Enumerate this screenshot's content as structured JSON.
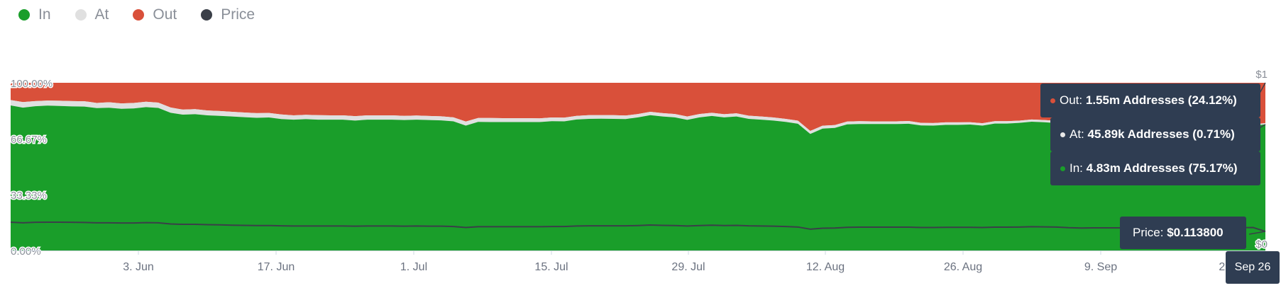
{
  "legend": [
    {
      "name": "In",
      "color": "#1a9e2a",
      "icon": "green-dot"
    },
    {
      "name": "At",
      "color": "#e0e0e0",
      "icon": "light-gray-dot"
    },
    {
      "name": "Out",
      "color": "#d9503a",
      "icon": "red-dot"
    },
    {
      "name": "Price",
      "color": "#3a3f48",
      "icon": "dark-gray-dot"
    }
  ],
  "chart_data": {
    "type": "area",
    "stacked": "percent",
    "y_ticks": [
      "100.00%",
      "66.67%",
      "33.33%",
      "0.00%"
    ],
    "y_range": [
      0,
      100
    ],
    "x_ticks": [
      "3. Jun",
      "17. Jun",
      "1. Jul",
      "15. Jul",
      "29. Jul",
      "12. Aug",
      "26. Aug",
      "9. Sep",
      "23. Sep"
    ],
    "right_axis_ticks": [
      "$1",
      "$0"
    ],
    "price_range": [
      0,
      1
    ],
    "x_start": "2024-05-23",
    "x_end": "2024-09-26",
    "series": [
      {
        "name": "In",
        "color": "#1a9e2a",
        "values": [
          86.5,
          85.2,
          86.0,
          86.4,
          86.2,
          85.9,
          85.8,
          84.9,
          85.1,
          84.5,
          84.7,
          85.5,
          85.0,
          82.1,
          81.0,
          81.3,
          80.6,
          80.3,
          79.9,
          79.5,
          79.1,
          79.3,
          78.4,
          78.0,
          78.3,
          78.0,
          78.0,
          78.0,
          77.5,
          78.0,
          78.0,
          78.0,
          77.8,
          78.0,
          77.8,
          77.6,
          77.0,
          74.5,
          76.7,
          76.6,
          76.6,
          76.6,
          76.6,
          76.6,
          77.1,
          77.0,
          78.1,
          78.5,
          78.6,
          78.5,
          78.4,
          79.4,
          80.7,
          79.9,
          79.4,
          77.9,
          79.4,
          80.2,
          79.4,
          79.9,
          78.5,
          78.0,
          77.5,
          76.7,
          75.6,
          69.5,
          72.7,
          73.1,
          75.2,
          75.4,
          75.4,
          75.4,
          75.4,
          75.6,
          74.6,
          74.5,
          74.9,
          74.9,
          75.1,
          74.5,
          75.7,
          75.7,
          76.1,
          76.8,
          76.5,
          76.0,
          74.0,
          73.3,
          73.5,
          73.5,
          73.5,
          73.5,
          73.5,
          72.0,
          70.0,
          73.8,
          74.0,
          74.0,
          73.9,
          74.0,
          74.0,
          74.5,
          75.17
        ]
      },
      {
        "name": "At",
        "color": "#e0e0e0",
        "values": [
          3.2,
          3.3,
          3.1,
          3.0,
          3.1,
          3.2,
          3.2,
          3.1,
          3.3,
          3.2,
          3.3,
          3.2,
          3.2,
          3.2,
          3.0,
          3.0,
          2.9,
          2.9,
          2.8,
          2.8,
          2.8,
          2.7,
          2.7,
          2.6,
          2.6,
          2.7,
          2.6,
          2.6,
          2.6,
          2.6,
          2.6,
          2.6,
          2.5,
          2.5,
          2.4,
          2.4,
          2.4,
          2.4,
          2.3,
          2.4,
          2.3,
          2.3,
          2.3,
          2.2,
          2.2,
          2.2,
          2.2,
          2.2,
          2.1,
          2.2,
          2.1,
          2.0,
          2.0,
          2.0,
          2.0,
          2.0,
          2.0,
          1.9,
          1.9,
          1.9,
          1.9,
          1.9,
          1.8,
          1.8,
          1.8,
          1.8,
          1.7,
          1.7,
          1.7,
          1.7,
          1.6,
          1.6,
          1.6,
          1.6,
          1.5,
          1.5,
          1.5,
          1.5,
          1.4,
          1.4,
          1.4,
          1.4,
          1.3,
          1.3,
          1.3,
          1.3,
          1.2,
          1.2,
          1.2,
          1.2,
          1.1,
          1.1,
          1.1,
          1.0,
          1.0,
          1.0,
          0.9,
          0.9,
          0.9,
          0.8,
          0.8,
          0.8,
          0.71
        ]
      },
      {
        "name": "Out",
        "color": "#d9503a",
        "values": [
          10.3,
          11.5,
          10.9,
          10.6,
          10.7,
          10.9,
          11.0,
          12.0,
          11.6,
          12.3,
          12.0,
          11.3,
          11.8,
          14.7,
          16.0,
          15.7,
          16.5,
          16.8,
          17.3,
          17.7,
          18.1,
          18.0,
          18.9,
          19.4,
          19.1,
          19.3,
          19.4,
          19.4,
          19.9,
          19.4,
          19.4,
          19.4,
          19.7,
          19.5,
          19.8,
          20.0,
          20.6,
          23.1,
          21.0,
          21.0,
          21.1,
          21.1,
          21.1,
          21.2,
          20.7,
          20.8,
          19.7,
          19.3,
          19.3,
          19.3,
          19.5,
          18.6,
          17.3,
          18.1,
          18.6,
          20.1,
          18.6,
          17.9,
          18.7,
          18.2,
          19.6,
          20.1,
          20.7,
          21.5,
          22.6,
          28.7,
          25.6,
          25.2,
          23.1,
          22.9,
          23.0,
          23.0,
          23.0,
          22.8,
          23.9,
          24.0,
          23.6,
          23.6,
          23.5,
          24.1,
          22.9,
          22.9,
          22.6,
          21.9,
          22.2,
          22.7,
          24.8,
          25.5,
          25.3,
          25.3,
          25.4,
          25.4,
          25.4,
          27.0,
          29.0,
          25.2,
          25.1,
          25.1,
          25.2,
          25.2,
          25.2,
          24.7,
          24.12
        ]
      },
      {
        "name": "Price",
        "color": "#3a3f48",
        "values": [
          0.169,
          0.165,
          0.168,
          0.169,
          0.169,
          0.168,
          0.167,
          0.165,
          0.165,
          0.164,
          0.164,
          0.166,
          0.165,
          0.158,
          0.156,
          0.156,
          0.154,
          0.153,
          0.151,
          0.15,
          0.149,
          0.149,
          0.147,
          0.146,
          0.146,
          0.146,
          0.146,
          0.146,
          0.145,
          0.146,
          0.146,
          0.146,
          0.145,
          0.146,
          0.145,
          0.145,
          0.143,
          0.137,
          0.142,
          0.142,
          0.142,
          0.142,
          0.142,
          0.142,
          0.143,
          0.143,
          0.146,
          0.147,
          0.147,
          0.147,
          0.147,
          0.149,
          0.152,
          0.15,
          0.149,
          0.146,
          0.149,
          0.151,
          0.149,
          0.15,
          0.147,
          0.146,
          0.145,
          0.143,
          0.14,
          0.127,
          0.133,
          0.134,
          0.138,
          0.139,
          0.139,
          0.139,
          0.139,
          0.139,
          0.137,
          0.137,
          0.138,
          0.138,
          0.138,
          0.137,
          0.139,
          0.139,
          0.14,
          0.142,
          0.141,
          0.14,
          0.136,
          0.134,
          0.135,
          0.135,
          0.135,
          0.135,
          0.135,
          0.133,
          0.13,
          0.135,
          0.136,
          0.136,
          0.136,
          0.136,
          0.136,
          0.137,
          0.1138
        ]
      }
    ]
  },
  "tooltip": {
    "rows": [
      {
        "series": "Out",
        "label": "Out:",
        "value": "1.55m Addresses (24.12%)",
        "color": "#d9503a"
      },
      {
        "series": "At",
        "label": "At:",
        "value": "45.89k Addresses (0.71%)",
        "color": "#e8e8e8"
      },
      {
        "series": "In",
        "label": "In:",
        "value": "4.83m Addresses (75.17%)",
        "color": "#1a9e2a"
      }
    ],
    "price_label": "Price:",
    "price_value": "$0.113800",
    "date_label": "Sep 26"
  }
}
